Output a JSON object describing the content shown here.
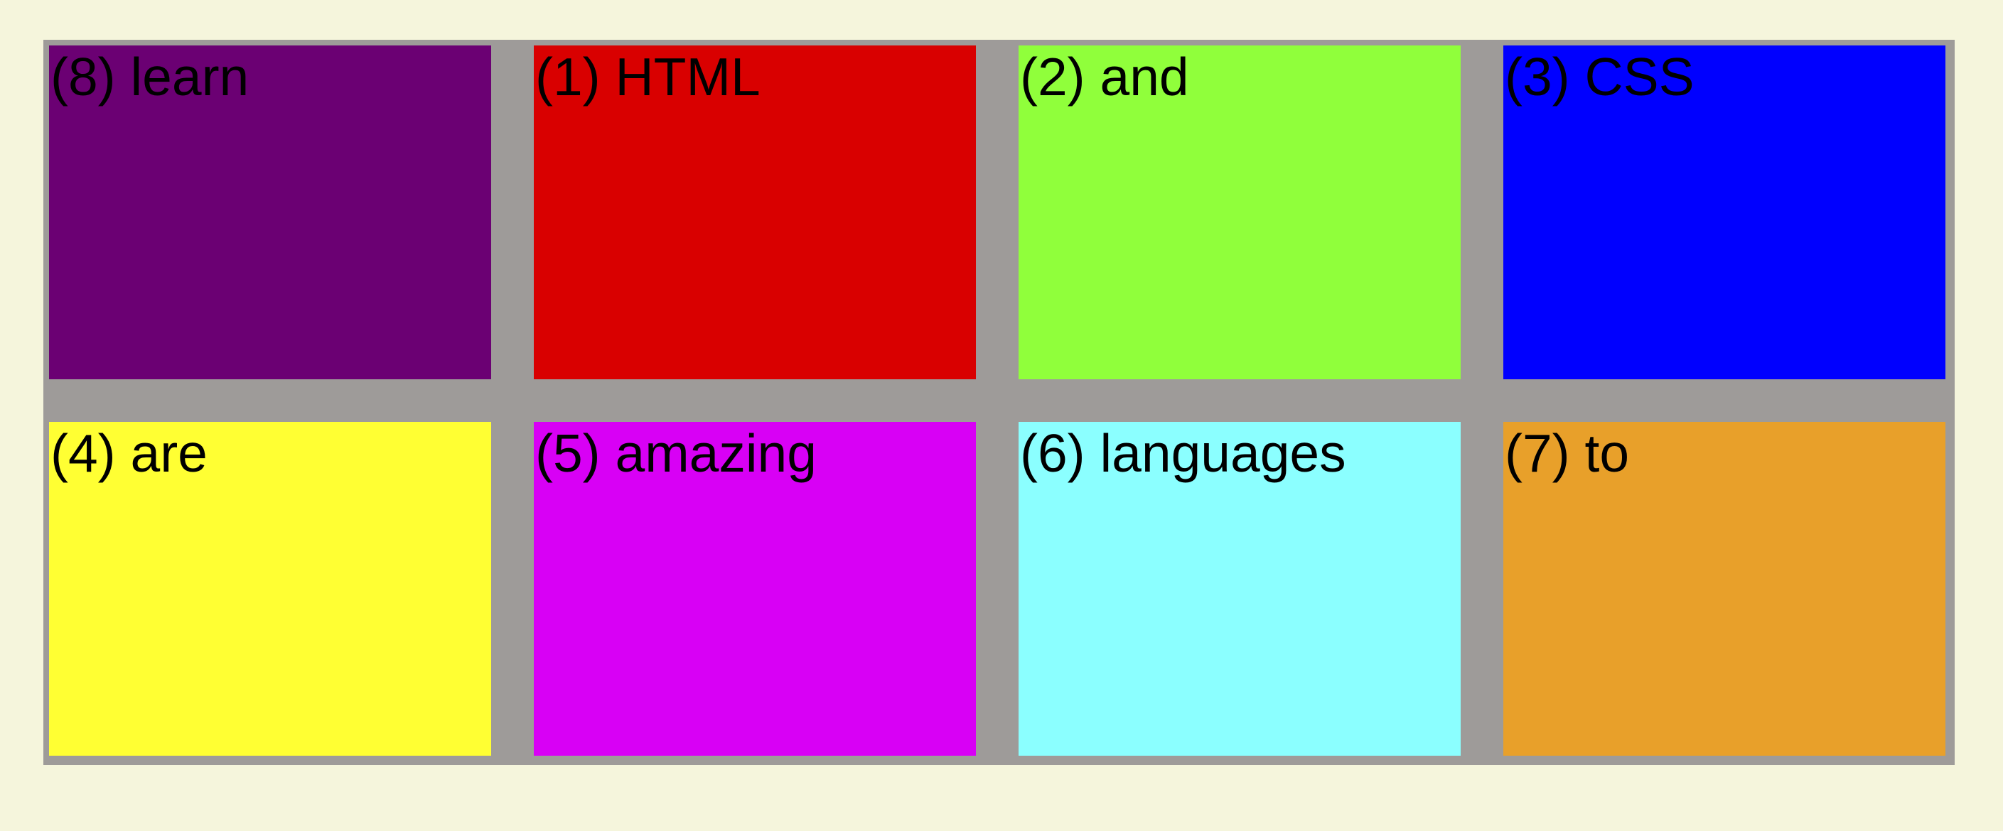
{
  "items": [
    {
      "label": "(8) learn",
      "color": "#6b0073"
    },
    {
      "label": "(1) HTML",
      "color": "#d90000"
    },
    {
      "label": "(2) and",
      "color": "#90ff3b"
    },
    {
      "label": "(3) CSS",
      "color": "#0000ff"
    },
    {
      "label": "(4) are",
      "color": "#ffff33"
    },
    {
      "label": "(5) amazing",
      "color": "#d800f5"
    },
    {
      "label": "(6) languages",
      "color": "#8bffff"
    },
    {
      "label": "(7) to",
      "color": "#e8a02a"
    }
  ],
  "colors": {
    "page_background": "#f5f5dc",
    "grid_background": "#9e9b99",
    "text": "#000000"
  }
}
